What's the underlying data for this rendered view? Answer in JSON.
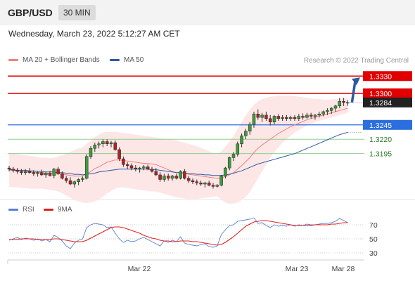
{
  "header": {
    "pair": "GBP/USD",
    "timeframe": "30 MIN"
  },
  "timestamp": "Wednesday, March 23, 2022 5:12:27 AM CET",
  "legend": {
    "ma20": {
      "label": "MA 20 + Bollinger Bands",
      "color": "#f08080"
    },
    "ma50": {
      "label": "MA 50",
      "color": "#2c5aa0"
    }
  },
  "credit": "Research © 2022 Trading Central",
  "rsi_legend": {
    "rsi": {
      "label": "RSI",
      "color": "#5b7fd6"
    },
    "ma9": {
      "label": "9MA",
      "color": "#e02020"
    }
  },
  "chart_data": [
    {
      "type": "candlestick",
      "title": "GBP/USD",
      "x_ticks": [
        "Mar 22",
        "Mar 23",
        "Mar 28"
      ],
      "ylim": [
        1.312,
        1.3345
      ],
      "levels": [
        {
          "value": 1.333,
          "label": "1.3330",
          "color": "#e00000",
          "kind": "resistance"
        },
        {
          "value": 1.33,
          "label": "1.3300",
          "color": "#e00000",
          "kind": "resistance"
        },
        {
          "value": 1.3284,
          "label": "1.3284",
          "color": "#222222",
          "kind": "last-price"
        },
        {
          "value": 1.3245,
          "label": "1.3245",
          "color": "#2a6ee0",
          "kind": "pivot"
        },
        {
          "value": 1.322,
          "label": "1.3220",
          "color": "#3aa83a",
          "kind": "support"
        },
        {
          "value": 1.3195,
          "label": "1.3195",
          "color": "#3aa83a",
          "kind": "support"
        }
      ],
      "ohlc": [
        [
          1.317,
          1.3174,
          1.3164,
          1.3168
        ],
        [
          1.3168,
          1.3172,
          1.3162,
          1.3166
        ],
        [
          1.3166,
          1.317,
          1.316,
          1.3164
        ],
        [
          1.3164,
          1.3168,
          1.3158,
          1.3162
        ],
        [
          1.3162,
          1.3168,
          1.3158,
          1.3164
        ],
        [
          1.3164,
          1.317,
          1.316,
          1.3162
        ],
        [
          1.3162,
          1.3166,
          1.3156,
          1.316
        ],
        [
          1.316,
          1.3164,
          1.3155,
          1.3162
        ],
        [
          1.3162,
          1.3167,
          1.3156,
          1.3158
        ],
        [
          1.3158,
          1.3163,
          1.3153,
          1.3161
        ],
        [
          1.3161,
          1.3165,
          1.3155,
          1.3157
        ],
        [
          1.3157,
          1.317,
          1.3152,
          1.3168
        ],
        [
          1.3168,
          1.3172,
          1.3158,
          1.316
        ],
        [
          1.316,
          1.3164,
          1.315,
          1.3152
        ],
        [
          1.3152,
          1.3156,
          1.3144,
          1.3148
        ],
        [
          1.3148,
          1.3154,
          1.314,
          1.3142
        ],
        [
          1.3142,
          1.3148,
          1.3136,
          1.3146
        ],
        [
          1.3146,
          1.3152,
          1.314,
          1.315
        ],
        [
          1.315,
          1.3155,
          1.3146,
          1.3152
        ],
        [
          1.3152,
          1.3194,
          1.315,
          1.319
        ],
        [
          1.319,
          1.3208,
          1.3186,
          1.3204
        ],
        [
          1.3204,
          1.3214,
          1.3198,
          1.321
        ],
        [
          1.321,
          1.3216,
          1.3204,
          1.3212
        ],
        [
          1.3212,
          1.322,
          1.3206,
          1.3216
        ],
        [
          1.3216,
          1.322,
          1.3208,
          1.3212
        ],
        [
          1.3212,
          1.3217,
          1.3206,
          1.3214
        ],
        [
          1.3214,
          1.3218,
          1.32,
          1.3202
        ],
        [
          1.3202,
          1.3206,
          1.3182,
          1.3186
        ],
        [
          1.3186,
          1.319,
          1.3172,
          1.3176
        ],
        [
          1.3176,
          1.318,
          1.3168,
          1.3174
        ],
        [
          1.3174,
          1.3178,
          1.3166,
          1.317
        ],
        [
          1.317,
          1.3175,
          1.3164,
          1.3168
        ],
        [
          1.3168,
          1.3172,
          1.3162,
          1.317
        ],
        [
          1.317,
          1.3175,
          1.3166,
          1.3172
        ],
        [
          1.3172,
          1.3176,
          1.3166,
          1.3168
        ],
        [
          1.3168,
          1.3172,
          1.3162,
          1.3164
        ],
        [
          1.3164,
          1.317,
          1.3156,
          1.3158
        ],
        [
          1.3158,
          1.3163,
          1.3146,
          1.315
        ],
        [
          1.315,
          1.316,
          1.3146,
          1.3156
        ],
        [
          1.3156,
          1.316,
          1.3148,
          1.3152
        ],
        [
          1.3152,
          1.3158,
          1.3148,
          1.3156
        ],
        [
          1.3156,
          1.316,
          1.315,
          1.3152
        ],
        [
          1.3152,
          1.3166,
          1.315,
          1.3164
        ],
        [
          1.3164,
          1.3168,
          1.315,
          1.3152
        ],
        [
          1.3152,
          1.3156,
          1.3144,
          1.3148
        ],
        [
          1.3148,
          1.3152,
          1.3142,
          1.3146
        ],
        [
          1.3146,
          1.315,
          1.314,
          1.3144
        ],
        [
          1.3144,
          1.3148,
          1.3139,
          1.3142
        ],
        [
          1.3142,
          1.3146,
          1.3136,
          1.3144
        ],
        [
          1.3144,
          1.3148,
          1.3138,
          1.314
        ],
        [
          1.314,
          1.3144,
          1.3134,
          1.3138
        ],
        [
          1.3138,
          1.3142,
          1.3136,
          1.314
        ],
        [
          1.314,
          1.3158,
          1.3138,
          1.3156
        ],
        [
          1.3156,
          1.3172,
          1.3152,
          1.317
        ],
        [
          1.317,
          1.319,
          1.3166,
          1.3188
        ],
        [
          1.3188,
          1.3198,
          1.3182,
          1.3194
        ],
        [
          1.3194,
          1.3216,
          1.319,
          1.3212
        ],
        [
          1.3212,
          1.323,
          1.3206,
          1.3226
        ],
        [
          1.3226,
          1.3238,
          1.322,
          1.3234
        ],
        [
          1.3234,
          1.325,
          1.3228,
          1.3246
        ],
        [
          1.3246,
          1.3268,
          1.324,
          1.3264
        ],
        [
          1.3264,
          1.3272,
          1.3254,
          1.3258
        ],
        [
          1.3258,
          1.3266,
          1.325,
          1.3262
        ],
        [
          1.3262,
          1.3268,
          1.3252,
          1.3256
        ],
        [
          1.3256,
          1.3262,
          1.3244,
          1.325
        ],
        [
          1.325,
          1.3262,
          1.3246,
          1.326
        ],
        [
          1.326,
          1.3264,
          1.3252,
          1.3256
        ],
        [
          1.3256,
          1.3262,
          1.3252,
          1.3258
        ],
        [
          1.3258,
          1.3262,
          1.3252,
          1.3256
        ],
        [
          1.3256,
          1.3261,
          1.3252,
          1.3258
        ],
        [
          1.3258,
          1.3262,
          1.3252,
          1.3256
        ],
        [
          1.3256,
          1.3264,
          1.3252,
          1.326
        ],
        [
          1.326,
          1.3265,
          1.3254,
          1.3258
        ],
        [
          1.3258,
          1.3266,
          1.3256,
          1.3262
        ],
        [
          1.3262,
          1.3266,
          1.3256,
          1.326
        ],
        [
          1.326,
          1.3264,
          1.3254,
          1.3262
        ],
        [
          1.3262,
          1.3268,
          1.3258,
          1.3264
        ],
        [
          1.3264,
          1.327,
          1.326,
          1.3268
        ],
        [
          1.3268,
          1.3274,
          1.3262,
          1.327
        ],
        [
          1.327,
          1.3276,
          1.3264,
          1.3274
        ],
        [
          1.3274,
          1.328,
          1.3268,
          1.3278
        ],
        [
          1.3278,
          1.3292,
          1.3274,
          1.3286
        ],
        [
          1.3286,
          1.3292,
          1.3278,
          1.3284
        ],
        [
          1.3284,
          1.3288,
          1.3278,
          1.3284
        ]
      ],
      "ma20": [
        1.3166,
        1.3166,
        1.3165,
        1.3164,
        1.3164,
        1.3163,
        1.3163,
        1.3162,
        1.3162,
        1.3161,
        1.316,
        1.316,
        1.316,
        1.3159,
        1.3158,
        1.3157,
        1.3156,
        1.3156,
        1.3156,
        1.316,
        1.3164,
        1.3169,
        1.3172,
        1.3176,
        1.318,
        1.3182,
        1.3184,
        1.3184,
        1.3183,
        1.3182,
        1.3181,
        1.318,
        1.3179,
        1.3178,
        1.3178,
        1.3177,
        1.3176,
        1.3173,
        1.317,
        1.3167,
        1.3164,
        1.3162,
        1.3162,
        1.3161,
        1.3159,
        1.3158,
        1.3157,
        1.3156,
        1.3155,
        1.3154,
        1.3153,
        1.3152,
        1.3153,
        1.3155,
        1.3158,
        1.3162,
        1.3168,
        1.3174,
        1.3181,
        1.3188,
        1.3197,
        1.3204,
        1.321,
        1.3215,
        1.322,
        1.3225,
        1.323,
        1.3234,
        1.3238,
        1.3242,
        1.3245,
        1.3248,
        1.3251,
        1.3254,
        1.3256,
        1.3258,
        1.326,
        1.3262,
        1.3264,
        1.3266,
        1.3268,
        1.327,
        1.3272,
        1.3274
      ],
      "bb_upper": [
        1.3195,
        1.3195,
        1.3194,
        1.3193,
        1.3192,
        1.3191,
        1.319,
        1.3189,
        1.3188,
        1.3188,
        1.3187,
        1.3188,
        1.319,
        1.3192,
        1.3195,
        1.3198,
        1.3201,
        1.3204,
        1.3206,
        1.3212,
        1.3218,
        1.3224,
        1.3228,
        1.3232,
        1.3233,
        1.3233,
        1.3233,
        1.3232,
        1.3231,
        1.323,
        1.3229,
        1.3228,
        1.3227,
        1.3226,
        1.3225,
        1.3224,
        1.3223,
        1.3222,
        1.3221,
        1.322,
        1.3219,
        1.3218,
        1.3216,
        1.3214,
        1.3212,
        1.321,
        1.3208,
        1.3205,
        1.3202,
        1.3199,
        1.3196,
        1.3193,
        1.3199,
        1.3207,
        1.3216,
        1.3226,
        1.3238,
        1.325,
        1.3262,
        1.3272,
        1.328,
        1.3286,
        1.329,
        1.3292,
        1.3294,
        1.3295,
        1.3296,
        1.3296,
        1.3296,
        1.3296,
        1.3295,
        1.3294,
        1.3293,
        1.3292,
        1.3291,
        1.329,
        1.329,
        1.3289,
        1.3289,
        1.3289,
        1.329,
        1.329,
        1.3291,
        1.3292
      ],
      "bb_lower": [
        1.3137,
        1.3137,
        1.3136,
        1.3135,
        1.3135,
        1.3134,
        1.3134,
        1.3134,
        1.3134,
        1.3133,
        1.3132,
        1.3131,
        1.3129,
        1.3126,
        1.3122,
        1.3118,
        1.3114,
        1.3112,
        1.311,
        1.3109,
        1.311,
        1.3112,
        1.3115,
        1.312,
        1.3126,
        1.313,
        1.3134,
        1.3136,
        1.3136,
        1.3135,
        1.3134,
        1.3133,
        1.3132,
        1.3131,
        1.313,
        1.3129,
        1.3129,
        1.3127,
        1.3125,
        1.3123,
        1.3121,
        1.3119,
        1.3118,
        1.3117,
        1.3116,
        1.3116,
        1.3116,
        1.3117,
        1.3118,
        1.3119,
        1.312,
        1.3121,
        1.3115,
        1.311,
        1.3108,
        1.3108,
        1.311,
        1.3114,
        1.312,
        1.3128,
        1.314,
        1.3152,
        1.3164,
        1.3176,
        1.3188,
        1.3198,
        1.3206,
        1.3214,
        1.322,
        1.3226,
        1.3232,
        1.3236,
        1.324,
        1.3244,
        1.3247,
        1.325,
        1.3252,
        1.3254,
        1.3256,
        1.3258,
        1.326,
        1.3262,
        1.3264,
        1.3266
      ],
      "ma50": [
        1.3167,
        1.3167,
        1.3166,
        1.3166,
        1.3166,
        1.3165,
        1.3165,
        1.3164,
        1.3164,
        1.3163,
        1.3163,
        1.3163,
        1.3162,
        1.3162,
        1.3161,
        1.316,
        1.3159,
        1.3159,
        1.3158,
        1.3159,
        1.316,
        1.3161,
        1.3163,
        1.3164,
        1.3165,
        1.3166,
        1.3167,
        1.3168,
        1.3168,
        1.3168,
        1.3168,
        1.3168,
        1.3168,
        1.3168,
        1.3168,
        1.3167,
        1.3167,
        1.3166,
        1.3165,
        1.3164,
        1.3163,
        1.3162,
        1.3162,
        1.3161,
        1.316,
        1.316,
        1.3159,
        1.3159,
        1.3158,
        1.3158,
        1.3157,
        1.3157,
        1.3157,
        1.3158,
        1.3159,
        1.3161,
        1.3163,
        1.3165,
        1.3168,
        1.3171,
        1.3174,
        1.3177,
        1.3179,
        1.3181,
        1.3183,
        1.3185,
        1.3187,
        1.3189,
        1.3191,
        1.3193,
        1.3195,
        1.3198,
        1.3201,
        1.3204,
        1.3207,
        1.321,
        1.3213,
        1.3216,
        1.3219,
        1.3222,
        1.3225,
        1.3228,
        1.323,
        1.3232
      ],
      "arrow": {
        "from": 1.3284,
        "to": 1.333
      }
    },
    {
      "type": "line",
      "title": "RSI",
      "y_ticks": [
        70,
        50,
        30
      ],
      "ylim": [
        20,
        80
      ],
      "series": [
        {
          "name": "RSI",
          "color": "#5b7fd6",
          "values": [
            48,
            50,
            52,
            49,
            51,
            50,
            48,
            50,
            47,
            49,
            46,
            55,
            52,
            47,
            40,
            36,
            44,
            48,
            50,
            66,
            70,
            72,
            71,
            70,
            66,
            67,
            58,
            50,
            45,
            48,
            46,
            47,
            50,
            52,
            49,
            46,
            43,
            40,
            47,
            45,
            48,
            46,
            53,
            44,
            42,
            41,
            40,
            42,
            43,
            39,
            38,
            40,
            56,
            63,
            69,
            70,
            75,
            76,
            77,
            78,
            80,
            72,
            73,
            69,
            66,
            70,
            68,
            69,
            68,
            70,
            68,
            70,
            69,
            71,
            70,
            70,
            71,
            72,
            72,
            73,
            75,
            79,
            76,
            73
          ]
        },
        {
          "name": "9MA",
          "color": "#e02020",
          "values": [
            49,
            49,
            49,
            50,
            50,
            50,
            50,
            49,
            49,
            49,
            49,
            50,
            50,
            49,
            48,
            47,
            46,
            46,
            46,
            48,
            51,
            54,
            57,
            60,
            63,
            66,
            67,
            67,
            66,
            64,
            62,
            60,
            58,
            55,
            53,
            51,
            50,
            48,
            47,
            47,
            46,
            46,
            47,
            47,
            47,
            46,
            46,
            45,
            44,
            43,
            42,
            41,
            42,
            45,
            49,
            53,
            58,
            63,
            68,
            71,
            74,
            75,
            76,
            76,
            75,
            74,
            73,
            72,
            71,
            70,
            69,
            69,
            69,
            69,
            69,
            70,
            70,
            70,
            70,
            71,
            71,
            72,
            73,
            73
          ]
        }
      ]
    }
  ]
}
